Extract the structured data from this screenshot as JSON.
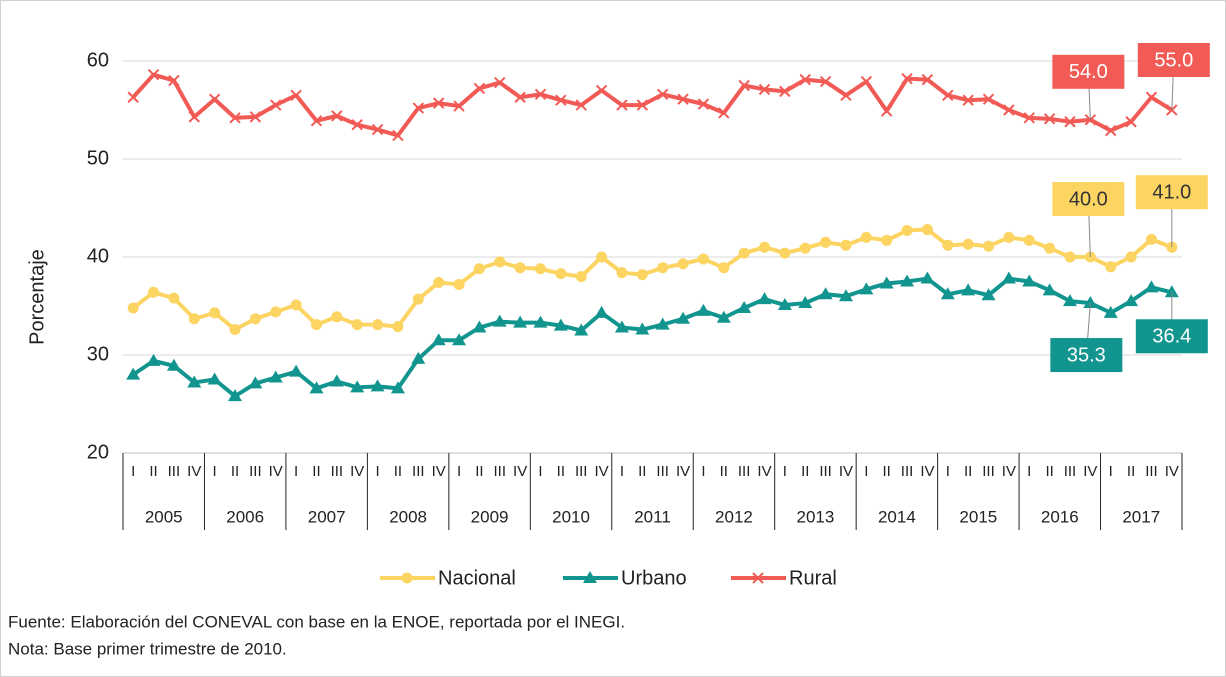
{
  "chart_data": {
    "type": "line",
    "ylabel": "Porcentaje",
    "categories": [
      "I",
      "II",
      "III",
      "IV",
      "I",
      "II",
      "III",
      "IV",
      "I",
      "II",
      "III",
      "IV",
      "I",
      "II",
      "III",
      "IV",
      "I",
      "II",
      "III",
      "IV",
      "I",
      "II",
      "III",
      "IV",
      "I",
      "II",
      "III",
      "IV",
      "I",
      "II",
      "III",
      "IV",
      "I",
      "II",
      "III",
      "IV",
      "I",
      "II",
      "III",
      "IV",
      "I",
      "II",
      "III",
      "IV",
      "I",
      "II",
      "III",
      "IV",
      "I",
      "II",
      "III",
      "IV"
    ],
    "years": [
      "2005",
      "2006",
      "2007",
      "2008",
      "2009",
      "2010",
      "2011",
      "2012",
      "2013",
      "2014",
      "2015",
      "2016",
      "2017"
    ],
    "ylim": [
      20,
      60
    ],
    "yticks": [
      20,
      30,
      40,
      50,
      60
    ],
    "grid": true,
    "legend": "bottom",
    "series": [
      {
        "name": "Nacional",
        "color": "#fcd462",
        "marker": "circle",
        "values": [
          34.8,
          36.4,
          35.8,
          33.7,
          34.3,
          32.6,
          33.7,
          34.4,
          35.1,
          33.1,
          33.9,
          33.1,
          33.1,
          32.9,
          35.7,
          37.4,
          37.2,
          38.8,
          39.5,
          38.9,
          38.8,
          38.3,
          38.0,
          40.0,
          38.4,
          38.2,
          38.9,
          39.3,
          39.8,
          38.9,
          40.4,
          41.0,
          40.4,
          40.9,
          41.5,
          41.2,
          42.0,
          41.7,
          42.7,
          42.8,
          41.2,
          41.3,
          41.1,
          42.0,
          41.7,
          40.9,
          40.0,
          40.0,
          39.0,
          40.0,
          41.8,
          41.0
        ],
        "value_labels": [
          null,
          null,
          null,
          null,
          null,
          null,
          null,
          null,
          null,
          null,
          null,
          null,
          null,
          null,
          null,
          null,
          null,
          null,
          null,
          null,
          null,
          null,
          null,
          null,
          null,
          null,
          null,
          null,
          null,
          null,
          null,
          null,
          null,
          null,
          null,
          null,
          null,
          null,
          null,
          null,
          null,
          null,
          null,
          null,
          null,
          null,
          null,
          "40.0",
          null,
          null,
          null,
          "41.0"
        ]
      },
      {
        "name": "Urbano",
        "color": "#12958f",
        "marker": "triangle",
        "values": [
          28.0,
          29.4,
          28.9,
          27.2,
          27.5,
          25.8,
          27.1,
          27.7,
          28.3,
          26.6,
          27.3,
          26.7,
          26.8,
          26.6,
          29.6,
          31.5,
          31.5,
          32.8,
          33.4,
          33.3,
          33.3,
          33.0,
          32.5,
          34.3,
          32.8,
          32.6,
          33.1,
          33.7,
          34.5,
          33.8,
          34.8,
          35.7,
          35.1,
          35.3,
          36.2,
          36.0,
          36.7,
          37.3,
          37.5,
          37.8,
          36.2,
          36.6,
          36.1,
          37.8,
          37.5,
          36.6,
          35.5,
          35.3,
          34.3,
          35.5,
          36.9,
          36.4
        ],
        "value_labels": [
          null,
          null,
          null,
          null,
          null,
          null,
          null,
          null,
          null,
          null,
          null,
          null,
          null,
          null,
          null,
          null,
          null,
          null,
          null,
          null,
          null,
          null,
          null,
          null,
          null,
          null,
          null,
          null,
          null,
          null,
          null,
          null,
          null,
          null,
          null,
          null,
          null,
          null,
          null,
          null,
          null,
          null,
          null,
          null,
          null,
          null,
          null,
          "35.3",
          null,
          null,
          null,
          "36.4"
        ]
      },
      {
        "name": "Rural",
        "color": "#f15a55",
        "marker": "x",
        "values": [
          56.3,
          58.6,
          58.0,
          54.3,
          56.1,
          54.2,
          54.3,
          55.5,
          56.5,
          53.9,
          54.4,
          53.5,
          53.0,
          52.4,
          55.2,
          55.7,
          55.4,
          57.2,
          57.8,
          56.3,
          56.6,
          56.0,
          55.5,
          57.0,
          55.5,
          55.5,
          56.6,
          56.1,
          55.6,
          54.7,
          57.5,
          57.1,
          56.9,
          58.1,
          57.9,
          56.5,
          57.9,
          54.9,
          58.2,
          58.1,
          56.5,
          56.0,
          56.1,
          55.0,
          54.2,
          54.1,
          53.8,
          54.0,
          52.9,
          53.8,
          56.3,
          55.0
        ],
        "value_labels": [
          null,
          null,
          null,
          null,
          null,
          null,
          null,
          null,
          null,
          null,
          null,
          null,
          null,
          null,
          null,
          null,
          null,
          null,
          null,
          null,
          null,
          null,
          null,
          null,
          null,
          null,
          null,
          null,
          null,
          null,
          null,
          null,
          null,
          null,
          null,
          null,
          null,
          null,
          null,
          null,
          null,
          null,
          null,
          null,
          null,
          null,
          null,
          "54.0",
          null,
          null,
          null,
          "55.0"
        ]
      }
    ]
  },
  "notes": [
    "Fuente: Elaboración del CONEVAL con base en la ENOE, reportada por el INEGI.",
    "Nota: Base primer trimestre de 2010."
  ]
}
